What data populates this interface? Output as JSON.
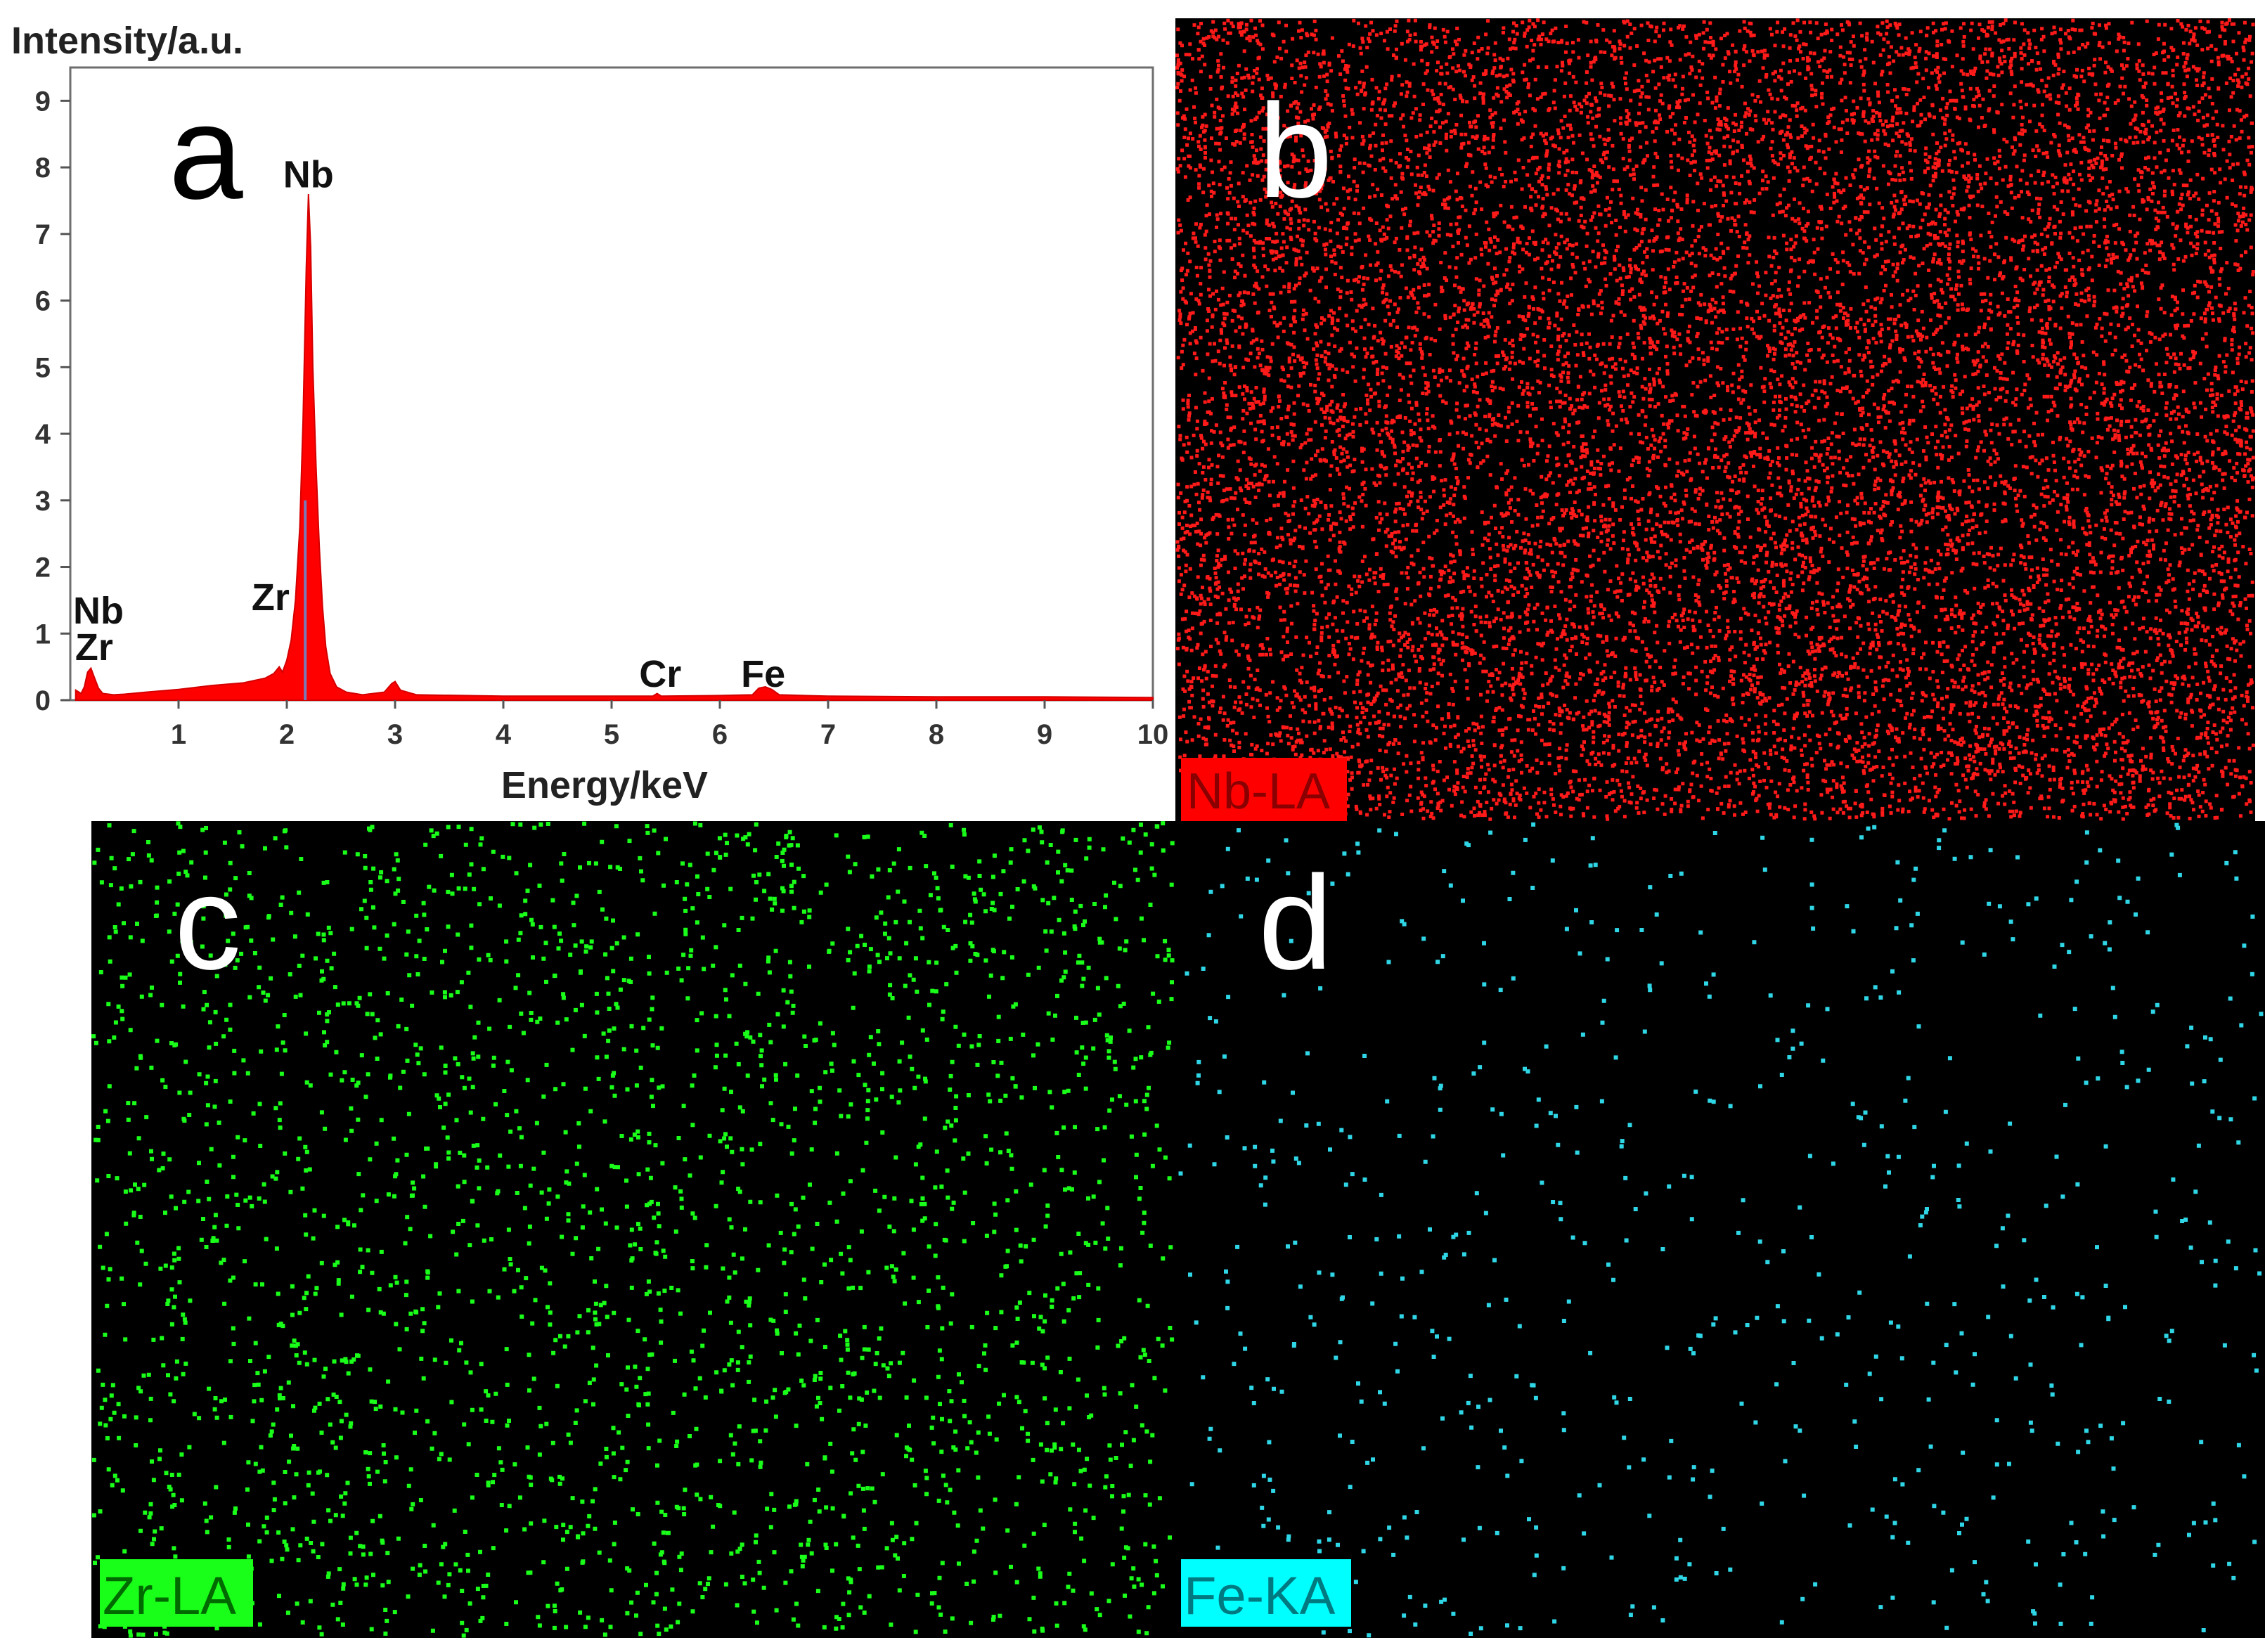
{
  "chart_data": {
    "type": "area",
    "panel_letter": "a",
    "ylabel": "Intensity/a.u.",
    "xlabel": "Energy/keV",
    "xlim": [
      0,
      10
    ],
    "ylim": [
      0,
      9.5
    ],
    "x_ticks": [
      "1",
      "2",
      "3",
      "4",
      "5",
      "6",
      "7",
      "8",
      "9",
      "10"
    ],
    "y_ticks": [
      "0",
      "1",
      "2",
      "3",
      "4",
      "5",
      "6",
      "7",
      "8",
      "9"
    ],
    "fill_color": "#ff0000",
    "spectrum": {
      "x": [
        0.05,
        0.1,
        0.13,
        0.16,
        0.19,
        0.22,
        0.26,
        0.3,
        0.4,
        0.5,
        0.7,
        1.0,
        1.3,
        1.6,
        1.8,
        1.88,
        1.93,
        1.96,
        2.0,
        2.04,
        2.08,
        2.12,
        2.15,
        2.18,
        2.2,
        2.22,
        2.24,
        2.27,
        2.3,
        2.33,
        2.36,
        2.4,
        2.46,
        2.55,
        2.7,
        2.9,
        2.97,
        3.0,
        3.05,
        3.2,
        4.0,
        5.0,
        5.38,
        5.42,
        5.46,
        6.0,
        6.3,
        6.36,
        6.42,
        6.48,
        6.55,
        7.0,
        8.0,
        9.0,
        10.0
      ],
      "y": [
        0.15,
        0.1,
        0.2,
        0.42,
        0.48,
        0.35,
        0.18,
        0.1,
        0.08,
        0.09,
        0.12,
        0.16,
        0.22,
        0.26,
        0.33,
        0.4,
        0.5,
        0.42,
        0.6,
        0.9,
        1.5,
        2.6,
        4.2,
        6.5,
        7.6,
        6.8,
        5.0,
        3.5,
        2.3,
        1.4,
        0.8,
        0.4,
        0.2,
        0.12,
        0.08,
        0.12,
        0.25,
        0.28,
        0.15,
        0.08,
        0.06,
        0.06,
        0.06,
        0.1,
        0.06,
        0.07,
        0.08,
        0.18,
        0.2,
        0.16,
        0.08,
        0.06,
        0.05,
        0.05,
        0.04
      ]
    },
    "peak_labels": [
      {
        "text": "Nb",
        "x": 2.2,
        "y": 7.7
      },
      {
        "text": "Nb",
        "x": 0.26,
        "y": 1.15
      },
      {
        "text": "Zr",
        "x": 0.22,
        "y": 0.6
      },
      {
        "text": "Zr",
        "x": 1.85,
        "y": 1.35
      },
      {
        "text": "Cr",
        "x": 5.45,
        "y": 0.2
      },
      {
        "text": "Fe",
        "x": 6.4,
        "y": 0.2
      }
    ]
  },
  "maps": [
    {
      "letter": "b",
      "label": "Nb-LA",
      "color": "#ff1a1a",
      "label_bg": "#ff0000",
      "label_fg": "#8a0000",
      "count": 13000,
      "seed": 11
    },
    {
      "letter": "c",
      "label": "Zr-LA",
      "color": "#1aff1a",
      "label_bg": "#19ff19",
      "label_fg": "#006a00",
      "count": 2600,
      "seed": 23
    },
    {
      "letter": "d",
      "label": "Fe-KA",
      "color": "#2fd6e6",
      "label_bg": "#00ffff",
      "label_fg": "#007a80",
      "count": 650,
      "seed": 37
    }
  ]
}
